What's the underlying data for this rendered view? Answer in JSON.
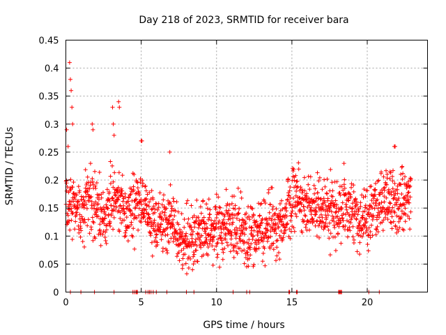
{
  "chart_data": {
    "type": "scatter",
    "title": "Day 218 of 2023, SRMTID for receiver bara",
    "xlabel": "GPS time / hours",
    "ylabel": "SRMTID / TECUs",
    "xlim": [
      0,
      24
    ],
    "ylim": [
      0,
      0.45
    ],
    "xticks": [
      0,
      5,
      10,
      15,
      20
    ],
    "yticks": [
      0,
      0.05,
      0.1,
      0.15,
      0.2,
      0.25,
      0.3,
      0.35,
      0.4,
      0.45
    ],
    "ytick_labels": [
      "0",
      "0.05",
      "0.1",
      "0.15",
      "0.2",
      "0.25",
      "0.3",
      "0.35",
      "0.4",
      "0.45"
    ],
    "xtick_labels": [
      "0",
      "5",
      "10",
      "15",
      "20"
    ],
    "grid": true,
    "marker": "+",
    "color": "#ff0000",
    "series": [
      {
        "name": "SRMTID",
        "baseline": [
          [
            0.0,
            0.15
          ],
          [
            0.5,
            0.16
          ],
          [
            1.0,
            0.14
          ],
          [
            1.5,
            0.16
          ],
          [
            2.0,
            0.16
          ],
          [
            2.5,
            0.13
          ],
          [
            3.0,
            0.17
          ],
          [
            3.5,
            0.16
          ],
          [
            4.0,
            0.14
          ],
          [
            4.5,
            0.15
          ],
          [
            5.0,
            0.15
          ],
          [
            5.5,
            0.13
          ],
          [
            6.0,
            0.12
          ],
          [
            6.5,
            0.12
          ],
          [
            7.0,
            0.13
          ],
          [
            7.5,
            0.1
          ],
          [
            8.0,
            0.09
          ],
          [
            8.5,
            0.1
          ],
          [
            9.0,
            0.11
          ],
          [
            9.5,
            0.11
          ],
          [
            10.0,
            0.11
          ],
          [
            10.5,
            0.12
          ],
          [
            11.0,
            0.12
          ],
          [
            11.5,
            0.11
          ],
          [
            12.0,
            0.09
          ],
          [
            12.5,
            0.1
          ],
          [
            13.0,
            0.12
          ],
          [
            13.5,
            0.12
          ],
          [
            14.0,
            0.11
          ],
          [
            14.5,
            0.13
          ],
          [
            15.0,
            0.16
          ],
          [
            15.5,
            0.17
          ],
          [
            16.0,
            0.15
          ],
          [
            16.5,
            0.15
          ],
          [
            17.0,
            0.15
          ],
          [
            17.5,
            0.15
          ],
          [
            18.0,
            0.14
          ],
          [
            18.5,
            0.15
          ],
          [
            19.0,
            0.14
          ],
          [
            19.5,
            0.13
          ],
          [
            20.0,
            0.14
          ],
          [
            20.5,
            0.15
          ],
          [
            21.0,
            0.17
          ],
          [
            21.5,
            0.16
          ],
          [
            22.0,
            0.16
          ],
          [
            22.5,
            0.17
          ],
          [
            22.9,
            0.17
          ]
        ],
        "spread": 0.045,
        "points_per_hour": 75,
        "peaks": [
          [
            0.05,
            0.29
          ],
          [
            0.15,
            0.26
          ],
          [
            0.25,
            0.41
          ],
          [
            0.3,
            0.38
          ],
          [
            0.35,
            0.36
          ],
          [
            0.4,
            0.33
          ],
          [
            0.45,
            0.3
          ],
          [
            1.75,
            0.3
          ],
          [
            1.8,
            0.29
          ],
          [
            3.1,
            0.33
          ],
          [
            3.15,
            0.3
          ],
          [
            3.2,
            0.28
          ],
          [
            3.5,
            0.34
          ],
          [
            3.55,
            0.33
          ],
          [
            5.0,
            0.27
          ],
          [
            5.05,
            0.27
          ],
          [
            6.9,
            0.25
          ],
          [
            21.8,
            0.26
          ],
          [
            21.85,
            0.26
          ]
        ],
        "zero_hours": [
          0.3,
          1.0,
          1.9,
          3.2,
          4.45,
          4.55,
          4.65,
          4.7,
          4.75,
          5.3,
          5.45,
          5.55,
          5.65,
          5.8,
          6.0,
          6.7,
          8.0,
          8.5,
          11.1,
          12.0,
          12.2,
          14.8,
          14.85,
          15.3,
          15.35,
          18.1,
          18.15,
          18.2,
          18.25,
          18.3,
          20.1,
          20.8
        ]
      }
    ]
  }
}
